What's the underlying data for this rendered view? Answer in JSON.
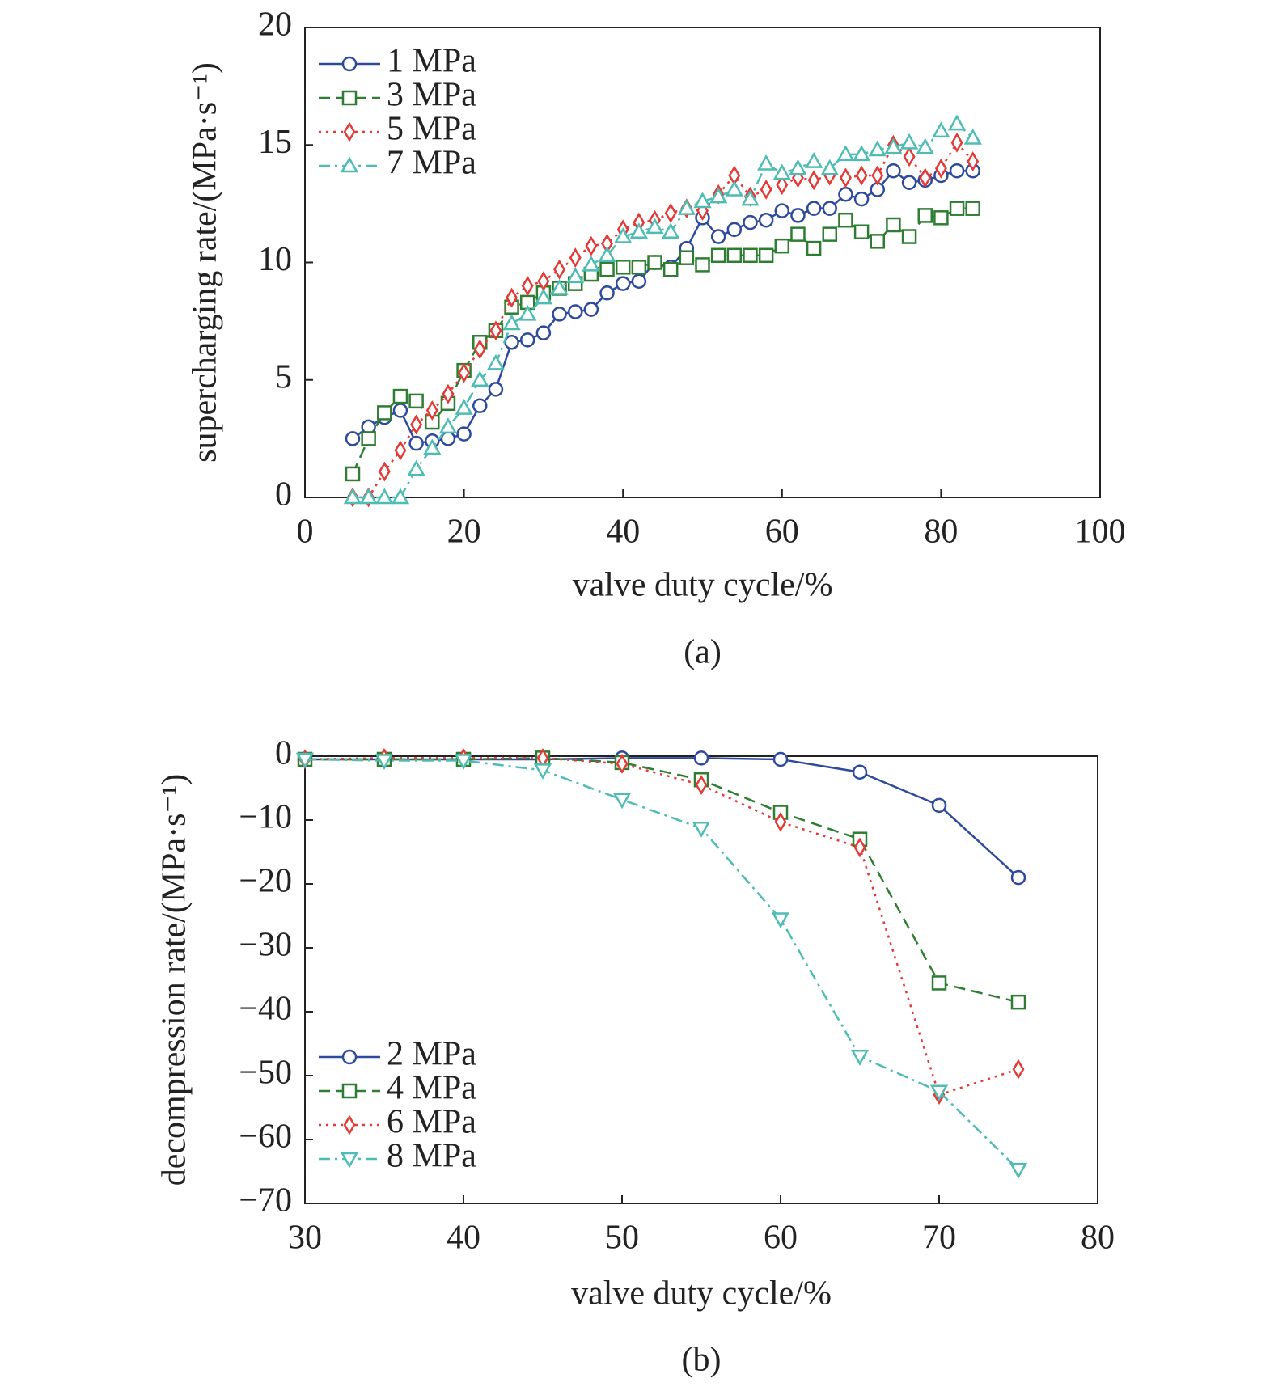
{
  "chart_data": [
    {
      "type": "line",
      "caption": "(a)",
      "xlabel": "valve duty cycle/%",
      "ylabel": "supercharging rate/(MPa·s⁻¹)",
      "xlim": [
        0,
        100
      ],
      "ylim": [
        0,
        20
      ],
      "xticks": [
        0,
        20,
        40,
        60,
        80,
        100
      ],
      "yticks": [
        0,
        5,
        10,
        15,
        20
      ],
      "legend": "upper left",
      "x": [
        6,
        8,
        10,
        12,
        14,
        16,
        18,
        20,
        22,
        24,
        26,
        28,
        30,
        32,
        34,
        36,
        38,
        40,
        42,
        44,
        46,
        48,
        50,
        52,
        54,
        56,
        58,
        60,
        62,
        64,
        66,
        68,
        70,
        72,
        74,
        76,
        78,
        80,
        82,
        84
      ],
      "series": [
        {
          "name": "1 MPa",
          "color": "#2e4a9e",
          "marker": "circle",
          "line_style": "solid",
          "values": [
            2.5,
            3.0,
            3.4,
            3.7,
            2.3,
            2.4,
            2.5,
            2.7,
            3.9,
            4.6,
            6.6,
            6.7,
            7.0,
            7.8,
            7.9,
            8.0,
            8.7,
            9.1,
            9.2,
            10.0,
            9.8,
            10.6,
            11.9,
            11.1,
            11.4,
            11.7,
            11.8,
            12.2,
            12.0,
            12.3,
            12.3,
            12.9,
            12.7,
            13.1,
            13.9,
            13.4,
            13.5,
            13.7,
            13.9,
            13.9
          ]
        },
        {
          "name": "3 MPa",
          "color": "#2e7d32",
          "marker": "square",
          "line_style": "dashed",
          "values": [
            1.0,
            2.5,
            3.6,
            4.3,
            4.1,
            3.2,
            4.0,
            5.4,
            6.6,
            7.1,
            8.1,
            8.3,
            8.7,
            8.9,
            9.1,
            9.5,
            9.7,
            9.8,
            9.8,
            10.0,
            9.7,
            10.2,
            9.9,
            10.3,
            10.3,
            10.3,
            10.3,
            10.7,
            11.2,
            10.6,
            11.2,
            11.8,
            11.3,
            10.9,
            11.6,
            11.1,
            12.0,
            11.9,
            12.3,
            12.3
          ]
        },
        {
          "name": "5 MPa",
          "color": "#e53935",
          "marker": "diamond",
          "line_style": "dotted",
          "values": [
            0,
            0,
            1.1,
            2.0,
            3.1,
            3.7,
            4.4,
            5.3,
            6.3,
            7.1,
            8.5,
            9.0,
            9.2,
            9.7,
            10.2,
            10.7,
            10.8,
            11.4,
            11.7,
            11.8,
            12.1,
            12.3,
            12.2,
            12.9,
            13.7,
            12.8,
            13.1,
            13.3,
            13.6,
            13.5,
            13.7,
            13.6,
            13.7,
            13.7,
            15.0,
            14.5,
            13.6,
            14.0,
            15.1,
            14.3
          ]
        },
        {
          "name": "7 MPa",
          "color": "#4dbdb4",
          "marker": "triangle",
          "line_style": "dashdot",
          "values": [
            0,
            0,
            0,
            0,
            1.2,
            2.1,
            3.0,
            3.8,
            5.0,
            5.7,
            7.4,
            7.8,
            8.5,
            8.9,
            9.4,
            9.9,
            10.3,
            11.1,
            11.3,
            11.5,
            11.3,
            12.3,
            12.6,
            12.8,
            13.1,
            12.7,
            14.2,
            13.8,
            14.0,
            14.3,
            14.0,
            14.6,
            14.6,
            14.8,
            14.9,
            15.1,
            14.9,
            15.6,
            15.9,
            15.3
          ]
        }
      ]
    },
    {
      "type": "line",
      "caption": "(b)",
      "xlabel": "valve duty cycle/%",
      "ylabel": "decompression rate/(MPa·s⁻¹)",
      "xlim": [
        30,
        80
      ],
      "ylim": [
        -70,
        0
      ],
      "xticks": [
        30,
        40,
        50,
        60,
        70,
        80
      ],
      "yticks": [
        0,
        {
          "value": -10,
          "label": "−10"
        },
        {
          "value": -20,
          "label": "−20"
        },
        {
          "value": -30,
          "label": "−30"
        },
        {
          "value": -40,
          "label": "−40"
        },
        {
          "value": -50,
          "label": "−50"
        },
        {
          "value": -60,
          "label": "−60"
        },
        {
          "value": -70,
          "label": "−70"
        }
      ],
      "legend": "lower left",
      "x": [
        30,
        35,
        40,
        45,
        50,
        55,
        60,
        65,
        70,
        75
      ],
      "series": [
        {
          "name": "2 MPa",
          "color": "#2e4a9e",
          "marker": "circle",
          "line_style": "solid",
          "values": [
            -0.5,
            -0.5,
            -0.5,
            -0.5,
            -0.3,
            -0.3,
            -0.5,
            -2.5,
            -7.7,
            -19
          ]
        },
        {
          "name": "4 MPa",
          "color": "#2e7d32",
          "marker": "square",
          "line_style": "dashed",
          "values": [
            -0.5,
            -0.5,
            -0.5,
            -0.3,
            -1,
            -3.7,
            -8.8,
            -13,
            -35.5,
            -38.5
          ]
        },
        {
          "name": "6 MPa",
          "color": "#e53935",
          "marker": "diamond",
          "line_style": "dotted",
          "values": [
            -0.5,
            -0.3,
            -0.3,
            -0.3,
            -1.2,
            -4.5,
            -10.3,
            -14.3,
            -53,
            -49
          ]
        },
        {
          "name": "8 MPa",
          "color": "#4dbdb4",
          "marker": "triangle-down",
          "line_style": "dashdot",
          "values": [
            -0.5,
            -0.7,
            -0.7,
            -2.2,
            -6.8,
            -11.3,
            -25.5,
            -47,
            -52.5,
            -64.7
          ]
        }
      ]
    }
  ]
}
